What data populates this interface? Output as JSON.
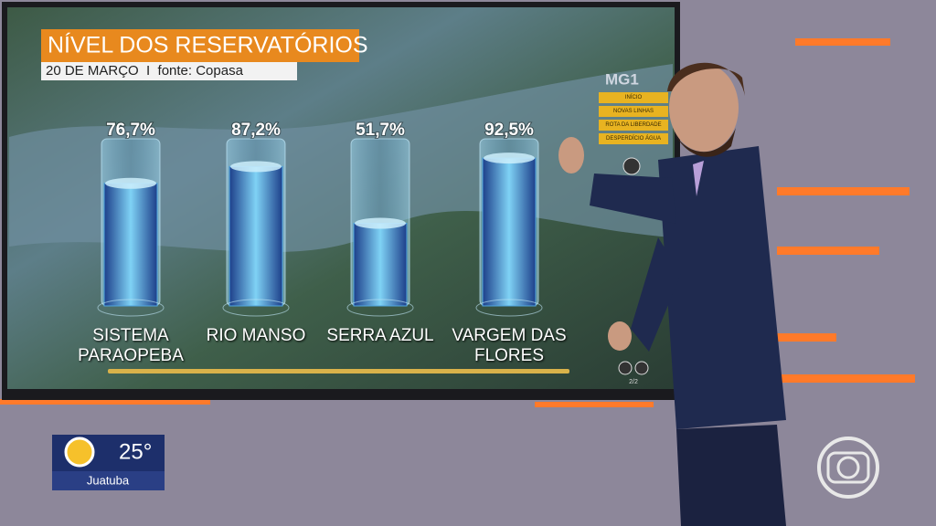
{
  "chart_data": {
    "type": "bar",
    "title": "NÍVEL DOS RESERVATÓRIOS",
    "subtitle": "20 DE MARÇO  I  fonte: Copasa",
    "categories": [
      "SISTEMA PARAOPEBA",
      "RIO MANSO",
      "SERRA AZUL",
      "VARGEM DAS FLORES"
    ],
    "values": [
      76.7,
      87.2,
      51.7,
      92.5
    ],
    "value_labels": [
      "76,7%",
      "87,2%",
      "51,7%",
      "92,5%"
    ],
    "color": "#4fa6e0",
    "ylim": [
      0,
      100
    ]
  },
  "menu": {
    "logo": "MG1",
    "items": [
      "INÍCIO",
      "NOVAS LINHAS",
      "ROTA DA LIBERDADE",
      "DESPERDÍCIO ÁGUA"
    ],
    "page": "2/2"
  },
  "weather": {
    "temperature": "25°",
    "city": "Juatuba"
  }
}
